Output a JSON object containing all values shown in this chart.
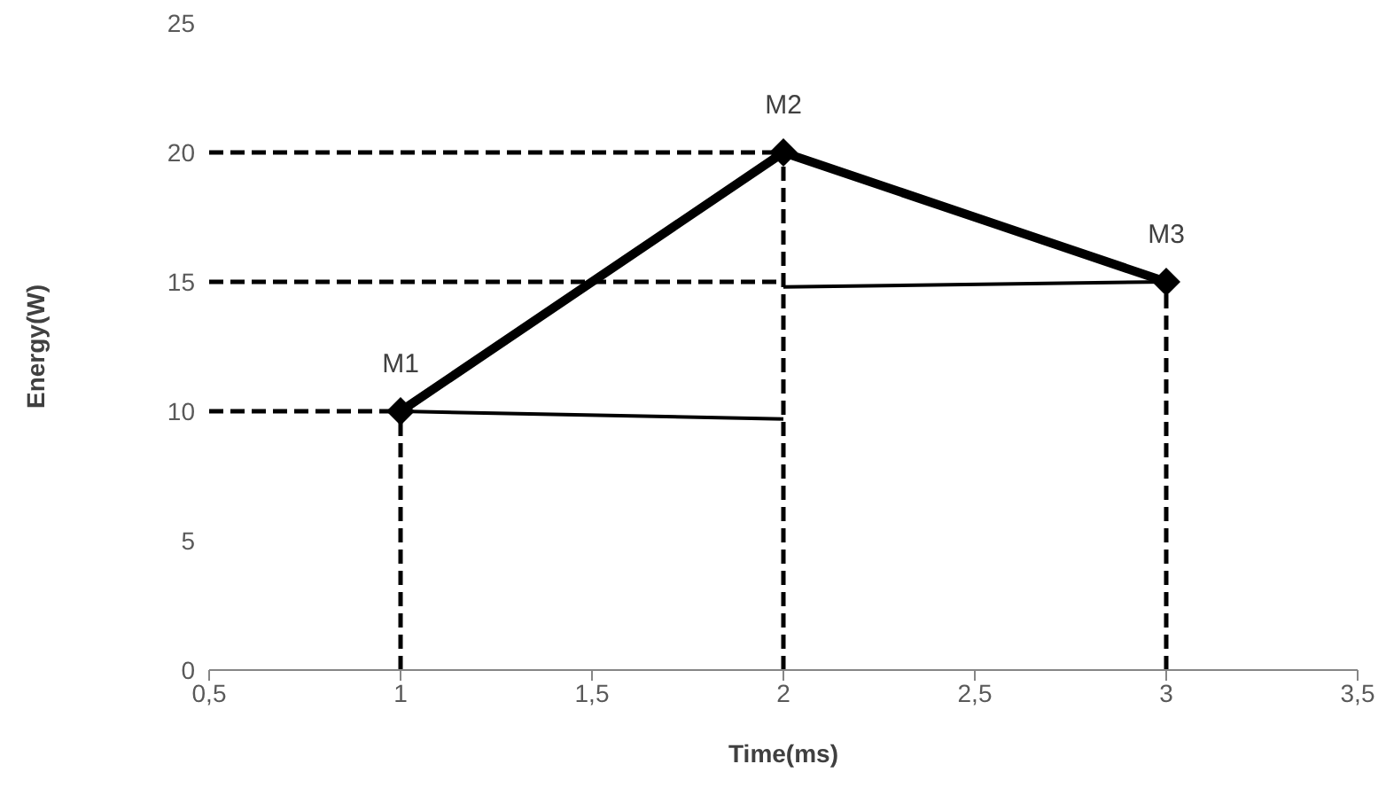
{
  "chart_data": {
    "type": "line",
    "xlabel": "Time(ms)",
    "ylabel": "Energy(W)",
    "xlim": [
      0.5,
      3.5
    ],
    "xticks": [
      {
        "value": 0.5,
        "label": "0,5"
      },
      1,
      {
        "value": 1.5,
        "label": "1,5"
      },
      2,
      {
        "value": 2.5,
        "label": "2,5"
      },
      3,
      {
        "value": 3.5,
        "label": "3,5"
      }
    ],
    "ylim": [
      0,
      25
    ],
    "yticks": [
      0,
      5,
      10,
      15,
      20,
      25
    ],
    "series": [
      {
        "color": "#000000",
        "x": [
          1,
          2,
          3
        ],
        "values": [
          10,
          20,
          15
        ],
        "marker": "diamond",
        "line_style": "solid"
      },
      {
        "color": "#000000",
        "x": [
          0.5,
          2
        ],
        "values": [
          20,
          20
        ],
        "marker": "none",
        "line_style": "dashed"
      },
      {
        "color": "#000000",
        "x": [
          0.5,
          2
        ],
        "values": [
          15,
          15
        ],
        "marker": "none",
        "line_style": "dashed"
      },
      {
        "color": "#000000",
        "x": [
          0.5,
          1
        ],
        "values": [
          10,
          10
        ],
        "marker": "none",
        "line_style": "dashed"
      },
      {
        "color": "#000000",
        "x": [
          1,
          1
        ],
        "values": [
          0,
          10
        ],
        "marker": "none",
        "line_style": "dashed"
      },
      {
        "color": "#000000",
        "x": [
          2,
          2
        ],
        "values": [
          0,
          20
        ],
        "marker": "none",
        "line_style": "dashed"
      },
      {
        "color": "#000000",
        "x": [
          3,
          3
        ],
        "values": [
          0,
          15
        ],
        "marker": "none",
        "line_style": "dashed"
      },
      {
        "color": "#000000",
        "x": [
          1,
          2
        ],
        "values": [
          10,
          9.7
        ],
        "marker": "none",
        "line_style": "solid"
      },
      {
        "color": "#000000",
        "x": [
          2,
          3
        ],
        "values": [
          14.8,
          15
        ],
        "marker": "none",
        "line_style": "solid"
      }
    ],
    "annotations": [
      {
        "text": "M1",
        "x": 1,
        "y": 10
      },
      {
        "text": "M2",
        "x": 2,
        "y": 20
      },
      {
        "text": "M3",
        "x": 3,
        "y": 15
      }
    ]
  }
}
